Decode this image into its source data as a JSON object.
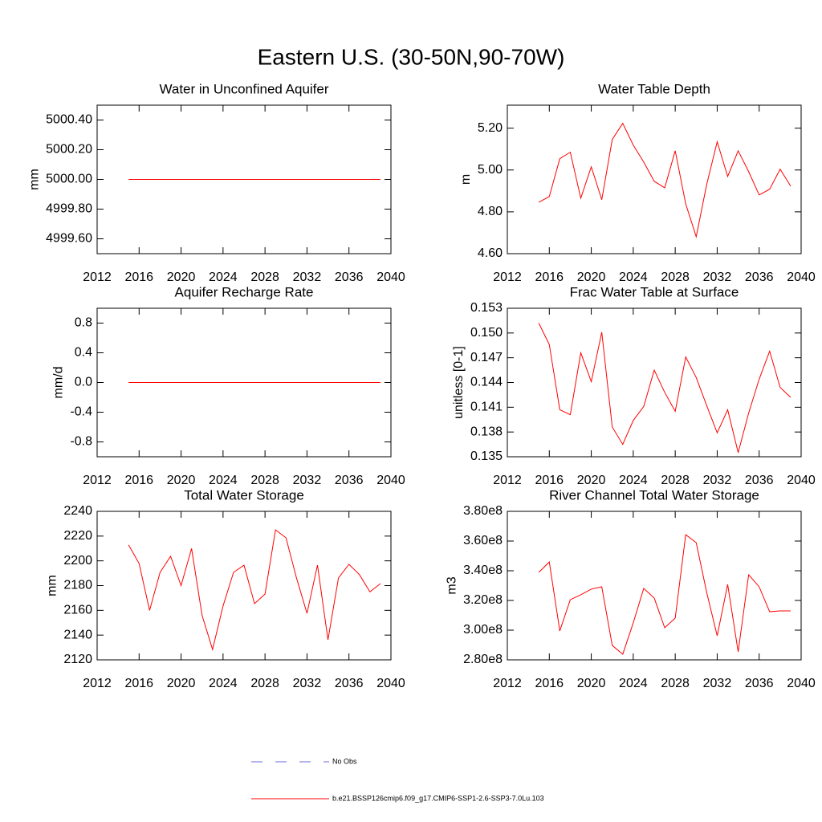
{
  "title": "Eastern U.S. (30-50N,90-70W)",
  "legend": [
    {
      "name": "No Obs",
      "color": "#6a6adf",
      "dash": true
    },
    {
      "name": "b.e21.BSSP126cmip6.f09_g17.CMIP6-SSP1-2.6-SSP3-7.0Lu.103",
      "color": "#ff0000",
      "dash": false
    }
  ],
  "chart_data": [
    {
      "type": "line",
      "title": "Water in Unconfined Aquifer",
      "y_label": "mm",
      "color": "#ff0000",
      "x": [
        2015,
        2016,
        2017,
        2018,
        2019,
        2020,
        2021,
        2022,
        2023,
        2024,
        2025,
        2026,
        2027,
        2028,
        2029,
        2030,
        2031,
        2032,
        2033,
        2034,
        2035,
        2036,
        2037,
        2038,
        2039
      ],
      "values": [
        5000,
        5000,
        5000,
        5000,
        5000,
        5000,
        5000,
        5000,
        5000,
        5000,
        5000,
        5000,
        5000,
        5000,
        5000,
        5000,
        5000,
        5000,
        5000,
        5000,
        5000,
        5000,
        5000,
        5000,
        5000
      ],
      "xlim": [
        2012,
        2040
      ],
      "xticks": [
        2012,
        2016,
        2020,
        2024,
        2028,
        2032,
        2036,
        2040
      ],
      "ylim": [
        4999.5,
        5000.5
      ],
      "yticks": [
        {
          "value": 4999.6,
          "label": "4999.60"
        },
        {
          "value": 4999.8,
          "label": "4999.80"
        },
        {
          "value": 5000,
          "label": "5000.00"
        },
        {
          "value": 5000.2,
          "label": "5000.20"
        },
        {
          "value": 5000.4,
          "label": "5000.40"
        }
      ]
    },
    {
      "type": "line",
      "title": "Water Table Depth",
      "y_label": "m",
      "color": "#ff0000",
      "x": [
        2015,
        2016,
        2017,
        2018,
        2019,
        2020,
        2021,
        2022,
        2023,
        2024,
        2025,
        2026,
        2027,
        2028,
        2029,
        2030,
        2031,
        2032,
        2033,
        2034,
        2035,
        2036,
        2037,
        2038,
        2039
      ],
      "values": [
        4.846,
        4.873,
        5.054,
        5.085,
        4.865,
        5.015,
        4.858,
        5.146,
        5.223,
        5.119,
        5.038,
        4.946,
        4.915,
        5.092,
        4.838,
        4.681,
        4.931,
        5.135,
        4.969,
        5.092,
        4.992,
        4.881,
        4.908,
        5.004,
        4.923
      ],
      "xlim": [
        2012,
        2040
      ],
      "xticks": [
        2012,
        2016,
        2020,
        2024,
        2028,
        2032,
        2036,
        2040
      ],
      "ylim": [
        4.6,
        5.31
      ],
      "yticks": [
        {
          "value": 4.6,
          "label": "4.60"
        },
        {
          "value": 4.8,
          "label": "4.80"
        },
        {
          "value": 5,
          "label": "5.00"
        },
        {
          "value": 5.2,
          "label": "5.20"
        }
      ]
    },
    {
      "type": "line",
      "title": "Aquifer Recharge Rate",
      "y_label": "mm/d",
      "color": "#ff0000",
      "x": [
        2015,
        2016,
        2017,
        2018,
        2019,
        2020,
        2021,
        2022,
        2023,
        2024,
        2025,
        2026,
        2027,
        2028,
        2029,
        2030,
        2031,
        2032,
        2033,
        2034,
        2035,
        2036,
        2037,
        2038,
        2039
      ],
      "values": [
        0,
        0,
        0,
        0,
        0,
        0,
        0,
        0,
        0,
        0,
        0,
        0,
        0,
        0,
        0,
        0,
        0,
        0,
        0,
        0,
        0,
        0,
        0,
        0,
        0
      ],
      "xlim": [
        2012,
        2040
      ],
      "xticks": [
        2012,
        2016,
        2020,
        2024,
        2028,
        2032,
        2036,
        2040
      ],
      "ylim": [
        -1,
        1
      ],
      "yticks": [
        -0.8,
        -0.4,
        {
          "value": 0,
          "label": "0.0"
        },
        0.4,
        0.8
      ]
    },
    {
      "type": "line",
      "title": "Frac Water Table at Surface",
      "y_label": "unitless [0-1]",
      "color": "#ff0000",
      "x": [
        2015,
        2016,
        2017,
        2018,
        2019,
        2020,
        2021,
        2022,
        2023,
        2024,
        2025,
        2026,
        2027,
        2028,
        2029,
        2030,
        2031,
        2032,
        2033,
        2034,
        2035,
        2036,
        2037,
        2038,
        2039
      ],
      "values": [
        0.1512,
        0.1486,
        0.1407,
        0.1401,
        0.1476,
        0.1441,
        0.1501,
        0.1386,
        0.1365,
        0.1394,
        0.1411,
        0.1455,
        0.1428,
        0.1405,
        0.1471,
        0.1446,
        0.1412,
        0.1379,
        0.1407,
        0.1355,
        0.1403,
        0.1444,
        0.1478,
        0.1434,
        0.1422
      ],
      "xlim": [
        2012,
        2040
      ],
      "xticks": [
        2012,
        2016,
        2020,
        2024,
        2028,
        2032,
        2036,
        2040
      ],
      "ylim": [
        0.135,
        0.153
      ],
      "yticks": [
        0.135,
        0.138,
        0.141,
        0.144,
        0.147,
        {
          "value": 0.15,
          "label": "0.150"
        },
        0.153
      ]
    },
    {
      "type": "line",
      "title": "Total Water Storage",
      "y_label": "mm",
      "color": "#ff0000",
      "x": [
        2015,
        2016,
        2017,
        2018,
        2019,
        2020,
        2021,
        2022,
        2023,
        2024,
        2025,
        2026,
        2027,
        2028,
        2029,
        2030,
        2031,
        2032,
        2033,
        2034,
        2035,
        2036,
        2037,
        2038,
        2039
      ],
      "values": [
        2212.8,
        2197.8,
        2160,
        2190.7,
        2203.7,
        2180,
        2210,
        2156,
        2128.4,
        2163.5,
        2190.7,
        2196.5,
        2165.4,
        2173.2,
        2225,
        2218.6,
        2186.2,
        2157.6,
        2196.5,
        2136.2,
        2186.2,
        2197.2,
        2188.8,
        2175,
        2181.6
      ],
      "xlim": [
        2012,
        2040
      ],
      "xticks": [
        2012,
        2016,
        2020,
        2024,
        2028,
        2032,
        2036,
        2040
      ],
      "ylim": [
        2120,
        2240
      ],
      "yticks": [
        2120,
        2140,
        2160,
        2180,
        2200,
        2220,
        2240
      ]
    },
    {
      "type": "line",
      "title": "River Channel Total Water Storage",
      "y_label": "m3",
      "color": "#ff0000",
      "x": [
        2015,
        2016,
        2017,
        2018,
        2019,
        2020,
        2021,
        2022,
        2023,
        2024,
        2025,
        2026,
        2027,
        2028,
        2029,
        2030,
        2031,
        2032,
        2033,
        2034,
        2035,
        2036,
        2037,
        2038,
        2039
      ],
      "values": [
        338900000,
        345900000,
        299500000,
        320500000,
        323800000,
        327600000,
        329200000,
        289700000,
        283800000,
        304900000,
        328100000,
        321600000,
        301600000,
        308100000,
        364300000,
        358900000,
        325400000,
        296200000,
        330800000,
        285400000,
        337300000,
        329200000,
        312400000,
        313000000,
        313000000
      ],
      "xlim": [
        2012,
        2040
      ],
      "xticks": [
        2012,
        2016,
        2020,
        2024,
        2028,
        2032,
        2036,
        2040
      ],
      "ylim": [
        280000000,
        380000000
      ],
      "yticks": [
        {
          "value": 280000000,
          "label": "2.80e8"
        },
        {
          "value": 300000000,
          "label": "3.00e8"
        },
        {
          "value": 320000000,
          "label": "3.20e8"
        },
        {
          "value": 340000000,
          "label": "3.40e8"
        },
        {
          "value": 360000000,
          "label": "3.60e8"
        },
        {
          "value": 380000000,
          "label": "3.80e8"
        }
      ]
    }
  ]
}
